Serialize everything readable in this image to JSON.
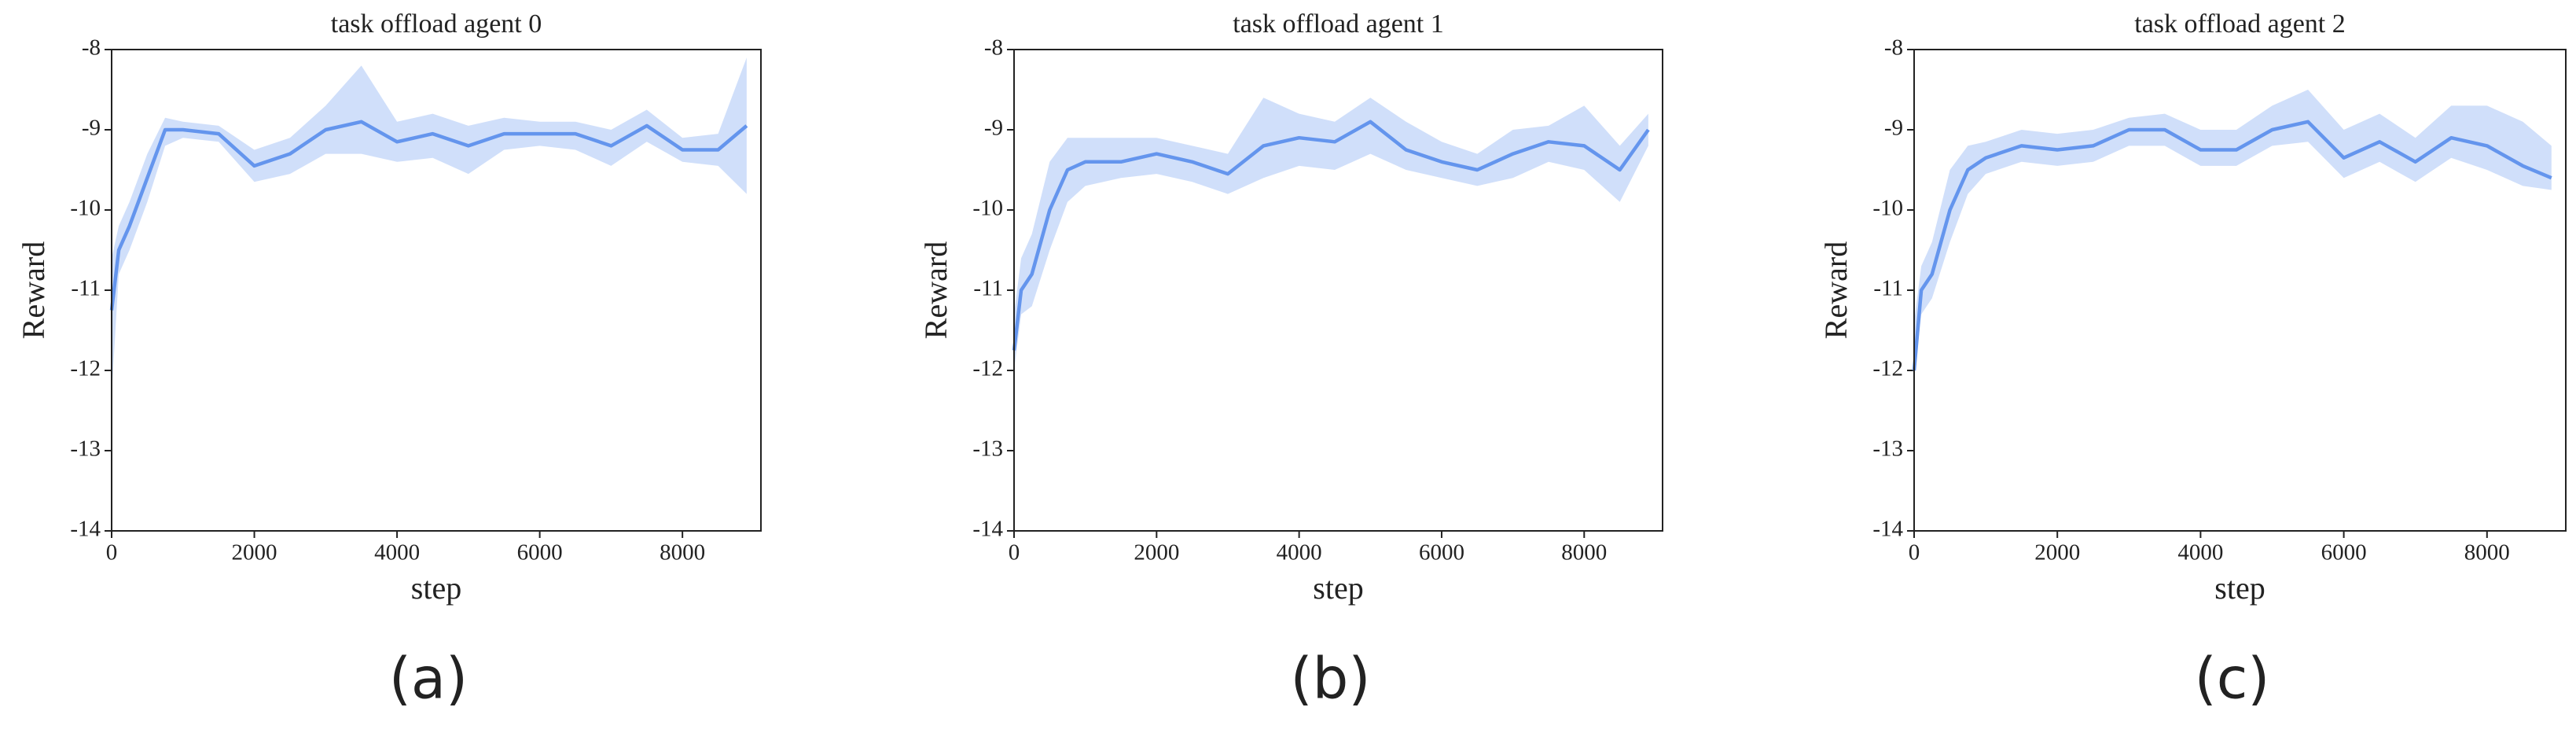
{
  "chart_data": [
    {
      "type": "line",
      "title": "task offload agent 0",
      "xlabel": "step",
      "ylabel": "Reward",
      "caption": "(a)",
      "x": [
        0,
        100,
        250,
        500,
        750,
        1000,
        1500,
        2000,
        2500,
        3000,
        3500,
        4000,
        4500,
        5000,
        5500,
        6000,
        6500,
        7000,
        7500,
        8000,
        8500,
        8900
      ],
      "series": [
        {
          "color": "#6495ed",
          "values": [
            -11.25,
            -10.5,
            -10.2,
            -9.6,
            -9.0,
            -9.0,
            -9.05,
            -9.45,
            -9.3,
            -9.0,
            -8.9,
            -9.15,
            -9.05,
            -9.2,
            -9.05,
            -9.05,
            -9.05,
            -9.2,
            -8.95,
            -9.25,
            -9.25,
            -8.95
          ],
          "upper": [
            -10.6,
            -10.2,
            -9.9,
            -9.3,
            -8.85,
            -8.9,
            -8.95,
            -9.25,
            -9.1,
            -8.7,
            -8.2,
            -8.9,
            -8.8,
            -8.95,
            -8.85,
            -8.9,
            -8.9,
            -9.0,
            -8.75,
            -9.1,
            -9.05,
            -8.1
          ],
          "lower": [
            -12.3,
            -10.8,
            -10.5,
            -9.9,
            -9.2,
            -9.1,
            -9.15,
            -9.65,
            -9.55,
            -9.3,
            -9.3,
            -9.4,
            -9.35,
            -9.55,
            -9.25,
            -9.2,
            -9.25,
            -9.45,
            -9.15,
            -9.4,
            -9.45,
            -9.8
          ]
        }
      ],
      "xlim": [
        0,
        9100
      ],
      "xticks": [
        0,
        2000,
        4000,
        6000,
        8000
      ],
      "ylim": [
        -14,
        -8
      ],
      "yticks": [
        -14,
        -13,
        -12,
        -11,
        -10,
        -9,
        -8
      ]
    },
    {
      "type": "line",
      "title": "task offload agent 1",
      "xlabel": "step",
      "ylabel": "Reward",
      "caption": "(b)",
      "x": [
        0,
        100,
        250,
        500,
        750,
        1000,
        1500,
        2000,
        2500,
        3000,
        3500,
        4000,
        4500,
        5000,
        5500,
        6000,
        6500,
        7000,
        7500,
        8000,
        8500,
        8900
      ],
      "series": [
        {
          "color": "#6495ed",
          "values": [
            -11.75,
            -11.0,
            -10.8,
            -10.0,
            -9.5,
            -9.4,
            -9.4,
            -9.3,
            -9.4,
            -9.55,
            -9.2,
            -9.1,
            -9.15,
            -8.9,
            -9.25,
            -9.4,
            -9.5,
            -9.3,
            -9.15,
            -9.2,
            -9.5,
            -9.0
          ],
          "upper": [
            -11.3,
            -10.6,
            -10.3,
            -9.4,
            -9.1,
            -9.1,
            -9.1,
            -9.1,
            -9.2,
            -9.3,
            -8.6,
            -8.8,
            -8.9,
            -8.6,
            -8.9,
            -9.15,
            -9.3,
            -9.0,
            -8.95,
            -8.7,
            -9.2,
            -8.8
          ],
          "lower": [
            -12.0,
            -11.3,
            -11.2,
            -10.5,
            -9.9,
            -9.7,
            -9.6,
            -9.55,
            -9.65,
            -9.8,
            -9.6,
            -9.45,
            -9.5,
            -9.3,
            -9.5,
            -9.6,
            -9.7,
            -9.6,
            -9.4,
            -9.5,
            -9.9,
            -9.2
          ]
        }
      ],
      "xlim": [
        0,
        9100
      ],
      "xticks": [
        0,
        2000,
        4000,
        6000,
        8000
      ],
      "ylim": [
        -14,
        -8
      ],
      "yticks": [
        -14,
        -13,
        -12,
        -11,
        -10,
        -9,
        -8
      ]
    },
    {
      "type": "line",
      "title": "task offload agent 2",
      "xlabel": "step",
      "ylabel": "Reward",
      "caption": "(c)",
      "x": [
        0,
        100,
        250,
        500,
        750,
        1000,
        1500,
        2000,
        2500,
        3000,
        3500,
        4000,
        4500,
        5000,
        5500,
        6000,
        6500,
        7000,
        7500,
        8000,
        8500,
        8900
      ],
      "series": [
        {
          "color": "#6495ed",
          "values": [
            -12.0,
            -11.0,
            -10.8,
            -10.0,
            -9.5,
            -9.35,
            -9.2,
            -9.25,
            -9.2,
            -9.0,
            -9.0,
            -9.25,
            -9.25,
            -9.0,
            -8.9,
            -9.35,
            -9.15,
            -9.4,
            -9.1,
            -9.2,
            -9.45,
            -9.6
          ],
          "upper": [
            -11.4,
            -10.7,
            -10.4,
            -9.5,
            -9.2,
            -9.15,
            -9.0,
            -9.05,
            -9.0,
            -8.85,
            -8.8,
            -9.0,
            -9.0,
            -8.7,
            -8.5,
            -9.0,
            -8.8,
            -9.1,
            -8.7,
            -8.7,
            -8.9,
            -9.2
          ],
          "lower": [
            -12.1,
            -11.3,
            -11.1,
            -10.4,
            -9.8,
            -9.55,
            -9.4,
            -9.45,
            -9.4,
            -9.2,
            -9.2,
            -9.45,
            -9.45,
            -9.2,
            -9.15,
            -9.6,
            -9.4,
            -9.65,
            -9.35,
            -9.5,
            -9.7,
            -9.75
          ]
        }
      ],
      "xlim": [
        0,
        9100
      ],
      "xticks": [
        0,
        2000,
        4000,
        6000,
        8000
      ],
      "ylim": [
        -14,
        -8
      ],
      "yticks": [
        -14,
        -13,
        -12,
        -11,
        -10,
        -9,
        -8
      ]
    }
  ]
}
